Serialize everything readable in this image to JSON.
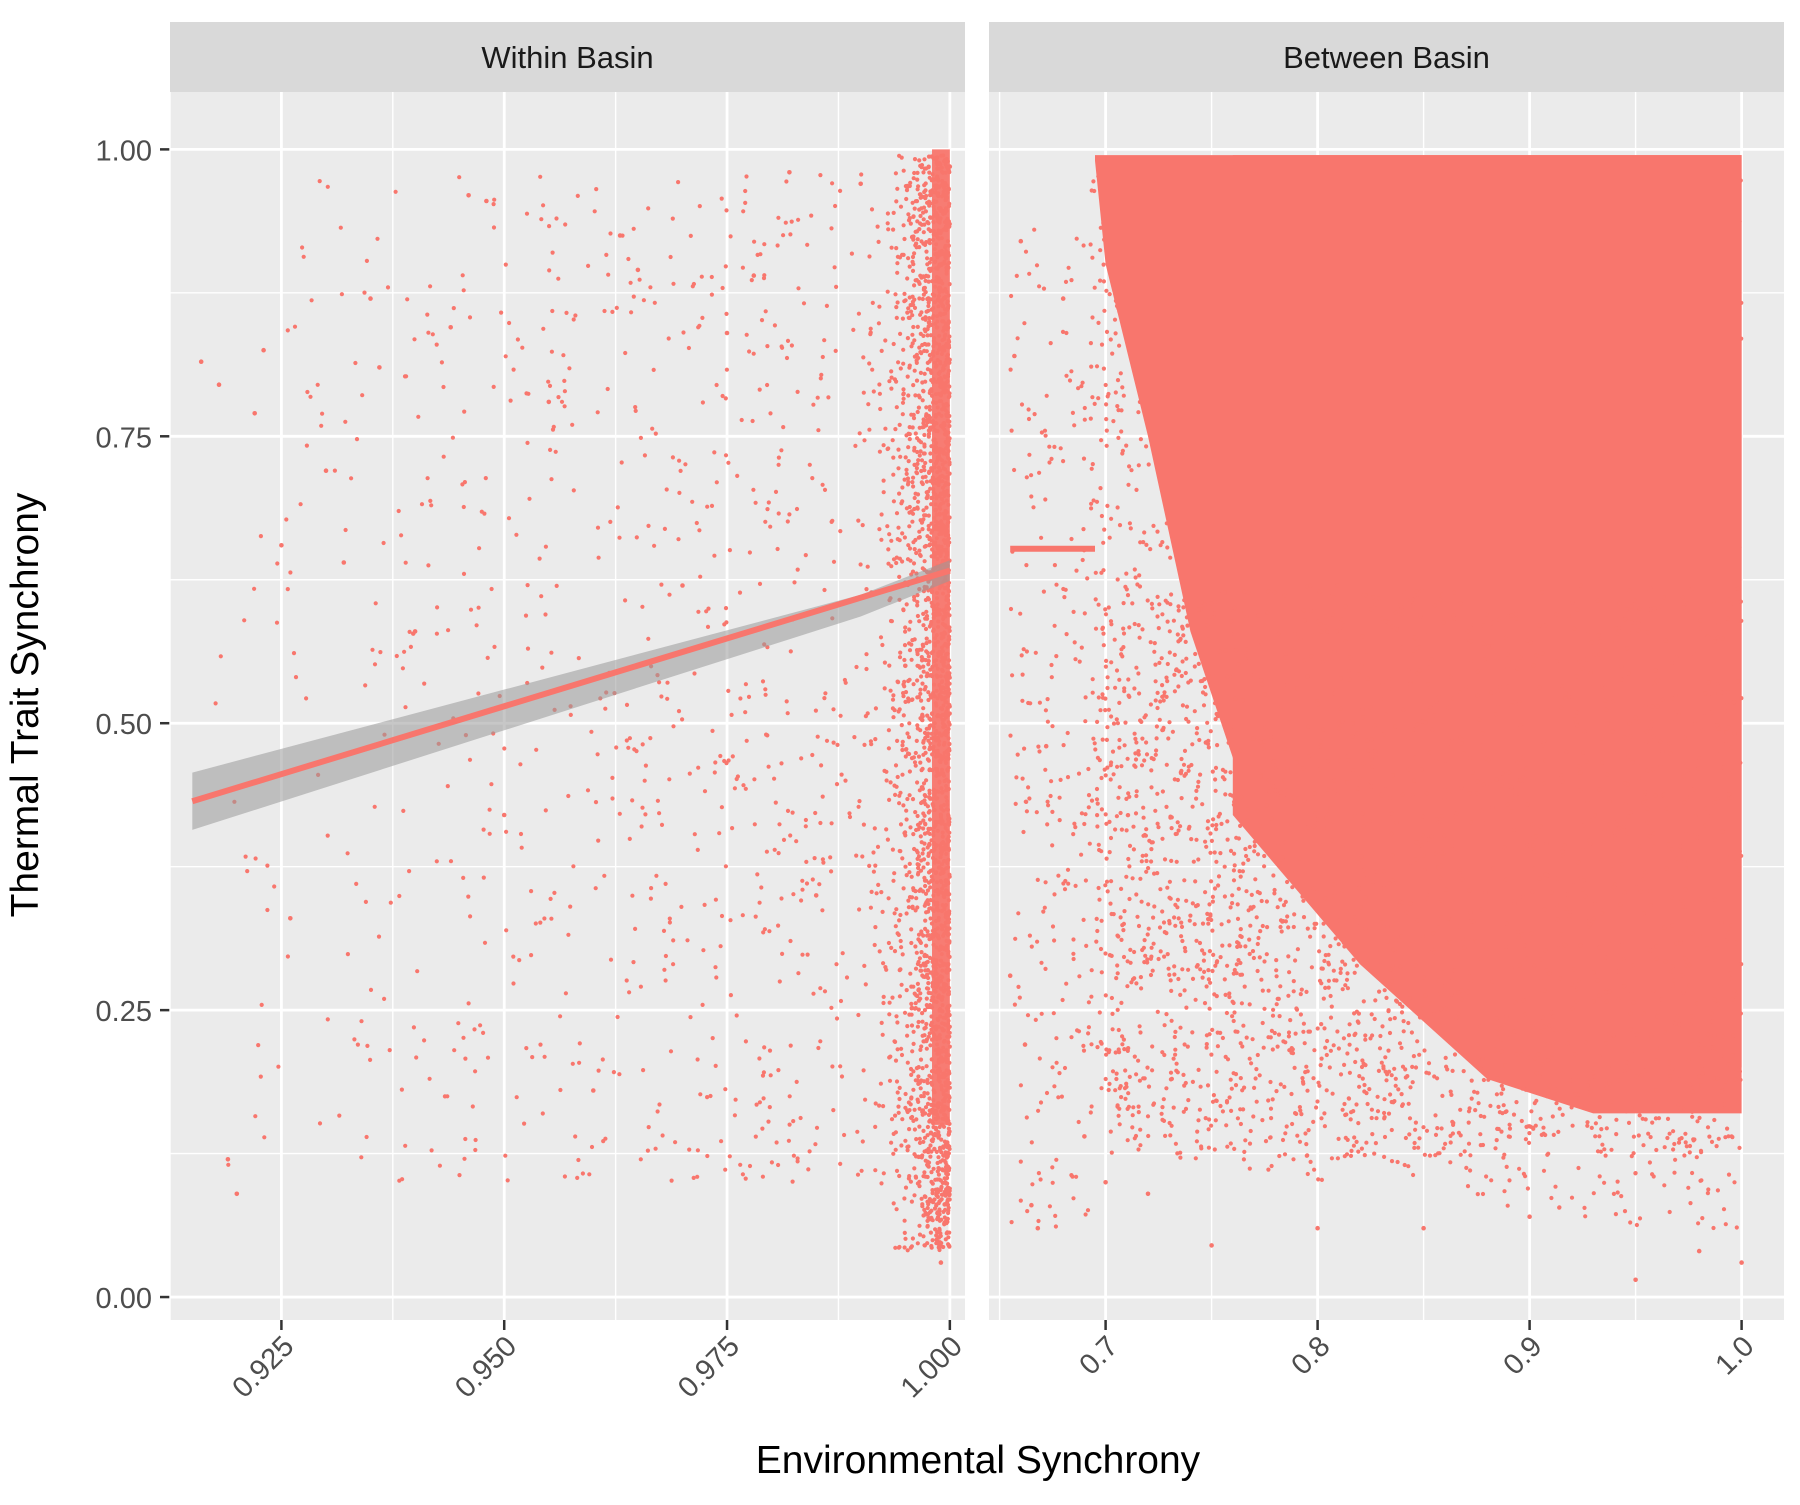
{
  "chart_data": {
    "type": "scatter",
    "ylabel": "Thermal Trait Synchrony",
    "xlabel": "Environmental Synchrony",
    "point_color": "#F8766D",
    "band_color": "#999999",
    "panel_background": "#EBEBEB",
    "strip_background": "#D9D9D9",
    "grid": true,
    "ylim": [
      -0.02,
      1.05
    ],
    "y_ticks": [
      0.0,
      0.25,
      0.5,
      0.75,
      1.0
    ],
    "y_tick_labels": [
      "0.00",
      "0.25",
      "0.50",
      "0.75",
      "1.00"
    ],
    "panels": [
      {
        "title": "Within Basin",
        "xlim": [
          0.9125,
          1.0017
        ],
        "x_ticks": [
          0.925,
          0.95,
          0.975,
          1.0
        ],
        "x_tick_labels": [
          "0.925",
          "0.950",
          "0.975",
          "1.000"
        ],
        "fit_line": {
          "x": [
            0.915,
            1.0
          ],
          "y": [
            0.432,
            0.633
          ]
        },
        "fit_band": {
          "x": [
            0.915,
            0.99,
            1.0
          ],
          "lower": [
            0.407,
            0.593,
            0.624
          ],
          "upper": [
            0.457,
            0.612,
            0.642
          ]
        },
        "points_description": "sparse points spread over x 0.915–0.99, dense vertical column at x≈0.995–1.0 spanning y 0.02–1.0",
        "sample_points": [
          [
            0.916,
            0.815
          ],
          [
            0.918,
            0.795
          ],
          [
            0.919,
            0.12
          ],
          [
            0.92,
            0.09
          ],
          [
            0.922,
            0.77
          ],
          [
            0.923,
            0.825
          ],
          [
            0.925,
            0.655
          ],
          [
            0.926,
            0.33
          ],
          [
            0.93,
            0.72
          ],
          [
            0.932,
            0.64
          ],
          [
            0.935,
            0.87
          ],
          [
            0.936,
            0.81
          ],
          [
            0.94,
            0.58
          ],
          [
            0.944,
            0.845
          ],
          [
            0.946,
            0.96
          ],
          [
            0.948,
            0.955
          ],
          [
            0.95,
            0.42
          ],
          [
            0.955,
            0.78
          ],
          [
            0.96,
            0.18
          ],
          [
            0.963,
            0.925
          ],
          [
            0.965,
            0.895
          ],
          [
            0.97,
            0.62
          ],
          [
            0.975,
            0.84
          ],
          [
            0.978,
            0.89
          ],
          [
            0.982,
            0.98
          ],
          [
            0.985,
            0.35
          ],
          [
            0.99,
            0.97
          ],
          [
            0.995,
            0.55
          ],
          [
            0.999,
            0.03
          ],
          [
            1.0,
            0.985
          ]
        ]
      },
      {
        "title": "Between Basin",
        "xlim": [
          0.645,
          1.02
        ],
        "x_ticks": [
          0.7,
          0.8,
          0.9,
          1.0
        ],
        "x_tick_labels": [
          "0.7",
          "0.8",
          "0.9",
          "1.0"
        ],
        "fit_line": {
          "x": [
            0.655,
            0.695
          ],
          "y": [
            0.652,
            0.652
          ]
        },
        "points_description": "sparse points at x 0.655–0.69, very dense cloud x 0.69–1.0 over y ~0.05–1.0; solid region roughly x 0.75–1.0, y 0.2–1.0",
        "sample_points": [
          [
            0.655,
            0.28
          ],
          [
            0.657,
            0.82
          ],
          [
            0.66,
            0.92
          ],
          [
            0.662,
            0.22
          ],
          [
            0.665,
            0.08
          ],
          [
            0.668,
            0.06
          ],
          [
            0.672,
            0.48
          ],
          [
            0.68,
            0.87
          ],
          [
            0.69,
            0.14
          ],
          [
            0.7,
            0.1
          ],
          [
            0.72,
            0.09
          ],
          [
            0.75,
            0.045
          ],
          [
            0.8,
            0.06
          ],
          [
            0.85,
            0.06
          ],
          [
            0.9,
            0.07
          ],
          [
            0.95,
            0.015
          ],
          [
            0.98,
            0.04
          ],
          [
            1.0,
            0.03
          ]
        ]
      }
    ]
  }
}
